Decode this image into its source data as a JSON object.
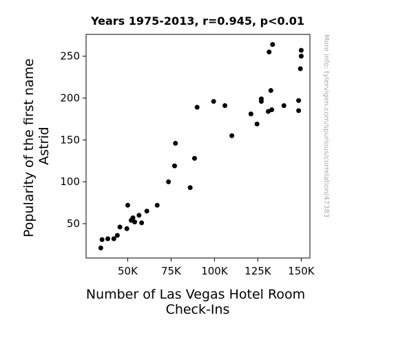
{
  "chart_data": {
    "type": "scatter",
    "title": "Years 1975-2013, r=0.945, p<0.01",
    "xlabel_lines": [
      "Number of Las Vegas Hotel Room",
      "Check-Ins"
    ],
    "ylabel_lines": [
      "Popularity of the first name",
      "Astrid"
    ],
    "xlim": [
      26000,
      155000
    ],
    "ylim": [
      9,
      276
    ],
    "x_ticks": [
      {
        "value": 50000,
        "label": "50K"
      },
      {
        "value": 75000,
        "label": "75K"
      },
      {
        "value": 100000,
        "label": "100K"
      },
      {
        "value": 125000,
        "label": "125K"
      },
      {
        "value": 150000,
        "label": "150K"
      }
    ],
    "y_ticks": [
      {
        "value": 50,
        "label": "50"
      },
      {
        "value": 100,
        "label": "100"
      },
      {
        "value": 150,
        "label": "150"
      },
      {
        "value": 200,
        "label": "200"
      },
      {
        "value": 250,
        "label": "250"
      }
    ],
    "grid": false,
    "marker_color": "#000000",
    "points": [
      {
        "x": 34500,
        "y": 21
      },
      {
        "x": 35200,
        "y": 31
      },
      {
        "x": 38500,
        "y": 32
      },
      {
        "x": 42000,
        "y": 32
      },
      {
        "x": 44000,
        "y": 36
      },
      {
        "x": 45500,
        "y": 46
      },
      {
        "x": 49500,
        "y": 44
      },
      {
        "x": 50000,
        "y": 72
      },
      {
        "x": 52000,
        "y": 54
      },
      {
        "x": 53000,
        "y": 57
      },
      {
        "x": 54000,
        "y": 52
      },
      {
        "x": 56500,
        "y": 60
      },
      {
        "x": 58000,
        "y": 51
      },
      {
        "x": 61000,
        "y": 65
      },
      {
        "x": 67000,
        "y": 72
      },
      {
        "x": 73500,
        "y": 100
      },
      {
        "x": 77000,
        "y": 119
      },
      {
        "x": 77500,
        "y": 146
      },
      {
        "x": 86000,
        "y": 93
      },
      {
        "x": 88500,
        "y": 128
      },
      {
        "x": 90000,
        "y": 189
      },
      {
        "x": 99500,
        "y": 196
      },
      {
        "x": 106000,
        "y": 191
      },
      {
        "x": 110000,
        "y": 155
      },
      {
        "x": 121000,
        "y": 181
      },
      {
        "x": 124500,
        "y": 169
      },
      {
        "x": 127000,
        "y": 199
      },
      {
        "x": 127000,
        "y": 196
      },
      {
        "x": 131000,
        "y": 184
      },
      {
        "x": 131500,
        "y": 255
      },
      {
        "x": 132500,
        "y": 209
      },
      {
        "x": 133000,
        "y": 186
      },
      {
        "x": 133500,
        "y": 264
      },
      {
        "x": 140000,
        "y": 191
      },
      {
        "x": 148500,
        "y": 185
      },
      {
        "x": 148500,
        "y": 197
      },
      {
        "x": 149500,
        "y": 235
      },
      {
        "x": 150000,
        "y": 250
      },
      {
        "x": 150000,
        "y": 257
      }
    ]
  },
  "watermark": "More info: tylervigen.com/spurious/correlation/47383"
}
